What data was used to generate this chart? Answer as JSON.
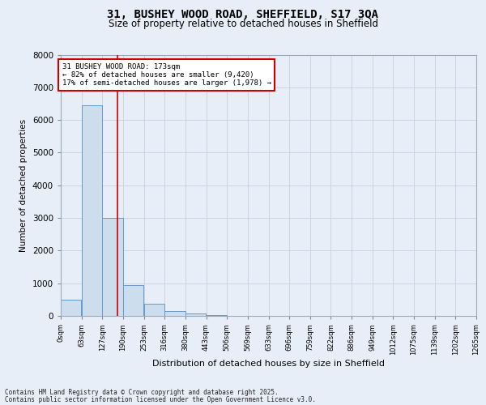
{
  "title_line1": "31, BUSHEY WOOD ROAD, SHEFFIELD, S17 3QA",
  "title_line2": "Size of property relative to detached houses in Sheffield",
  "xlabel": "Distribution of detached houses by size in Sheffield",
  "ylabel": "Number of detached properties",
  "bar_color": "#ccdded",
  "bar_edge_color": "#6699cc",
  "grid_color": "#c5d0e0",
  "background_color": "#e8eef8",
  "plot_bg_color": "#e8eef8",
  "bin_width": 63,
  "num_bins": 20,
  "bar_heights": [
    500,
    6450,
    3000,
    950,
    370,
    160,
    70,
    30,
    5,
    0,
    0,
    0,
    0,
    0,
    0,
    0,
    0,
    0,
    0,
    0
  ],
  "property_size": 173,
  "annotation_line1": "31 BUSHEY WOOD ROAD: 173sqm",
  "annotation_line2": "← 82% of detached houses are smaller (9,420)",
  "annotation_line3": "17% of semi-detached houses are larger (1,978) →",
  "vline_color": "#cc0000",
  "annotation_box_edge_color": "#cc0000",
  "annotation_box_face_color": "#ffffff",
  "ylim": [
    0,
    8000
  ],
  "yticks": [
    0,
    1000,
    2000,
    3000,
    4000,
    5000,
    6000,
    7000,
    8000
  ],
  "x_labels": [
    "0sqm",
    "63sqm",
    "127sqm",
    "190sqm",
    "253sqm",
    "316sqm",
    "380sqm",
    "443sqm",
    "506sqm",
    "569sqm",
    "633sqm",
    "696sqm",
    "759sqm",
    "822sqm",
    "886sqm",
    "949sqm",
    "1012sqm",
    "1075sqm",
    "1139sqm",
    "1202sqm",
    "1265sqm"
  ],
  "footer_line1": "Contains HM Land Registry data © Crown copyright and database right 2025.",
  "footer_line2": "Contains public sector information licensed under the Open Government Licence v3.0."
}
